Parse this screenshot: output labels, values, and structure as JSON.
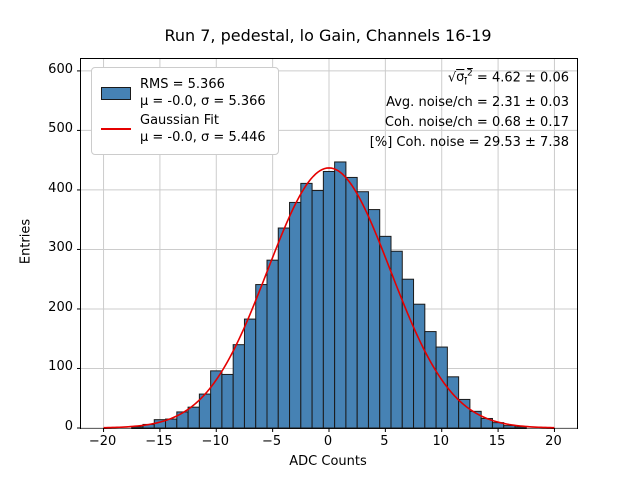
{
  "legend": {
    "entries": [
      {
        "line1": "RMS = 5.366",
        "line2": "μ = -0.0, σ = 5.366"
      },
      {
        "line1": "Gaussian Fit",
        "line2": "μ = -0.0, σ = 5.446"
      }
    ]
  },
  "stats": {
    "sqrt_sym": "√",
    "sqrt_sigma": "σ",
    "sqrt_sub": "I",
    "sqrt_sup": "2",
    "sqrt_rest": " = 4.62 ± 0.06",
    "lines": [
      "Avg. noise/ch = 2.31 ± 0.03",
      "Coh. noise/ch = 0.68 ± 0.17",
      "[%] Coh. noise = 29.53 ± 7.38"
    ]
  },
  "chart_data": {
    "type": "bar",
    "subtype": "histogram-with-gaussian-fit",
    "title": "Run 7, pedestal, lo Gain, Channels 16-19",
    "xlabel": "ADC Counts",
    "ylabel": "Entries",
    "xlim": [
      -22,
      22
    ],
    "ylim": [
      0,
      620
    ],
    "xticks": [
      -20,
      -15,
      -10,
      -5,
      0,
      5,
      10,
      15,
      20
    ],
    "yticks": [
      0,
      100,
      200,
      300,
      400,
      500,
      600
    ],
    "grid": true,
    "bin_width": 1,
    "bin_centers": [
      -17,
      -16,
      -15,
      -14,
      -13,
      -12,
      -11,
      -10,
      -9,
      -8,
      -7,
      -6,
      -5,
      -4,
      -3,
      -2,
      -1,
      0,
      1,
      2,
      3,
      4,
      5,
      6,
      7,
      8,
      9,
      10,
      11,
      12,
      13,
      14,
      15,
      16,
      17
    ],
    "counts": [
      2,
      6,
      14,
      15,
      27,
      35,
      57,
      96,
      90,
      140,
      183,
      241,
      282,
      336,
      379,
      411,
      399,
      431,
      447,
      421,
      397,
      367,
      322,
      297,
      250,
      208,
      162,
      136,
      86,
      48,
      28,
      16,
      9,
      4,
      2
    ],
    "histogram_stats": {
      "rms": 5.366,
      "mu": -0.0,
      "sigma": 5.366
    },
    "gaussian_fit": {
      "mu": -0.0,
      "sigma": 5.446,
      "amplitude": 437,
      "x_range": [
        -20,
        20
      ]
    },
    "colors": {
      "bar_fill": "#4682b4",
      "bar_edge": "#1a1a1a",
      "fit_line": "#e50000",
      "grid": "#cccccc",
      "axis": "#000000"
    }
  }
}
